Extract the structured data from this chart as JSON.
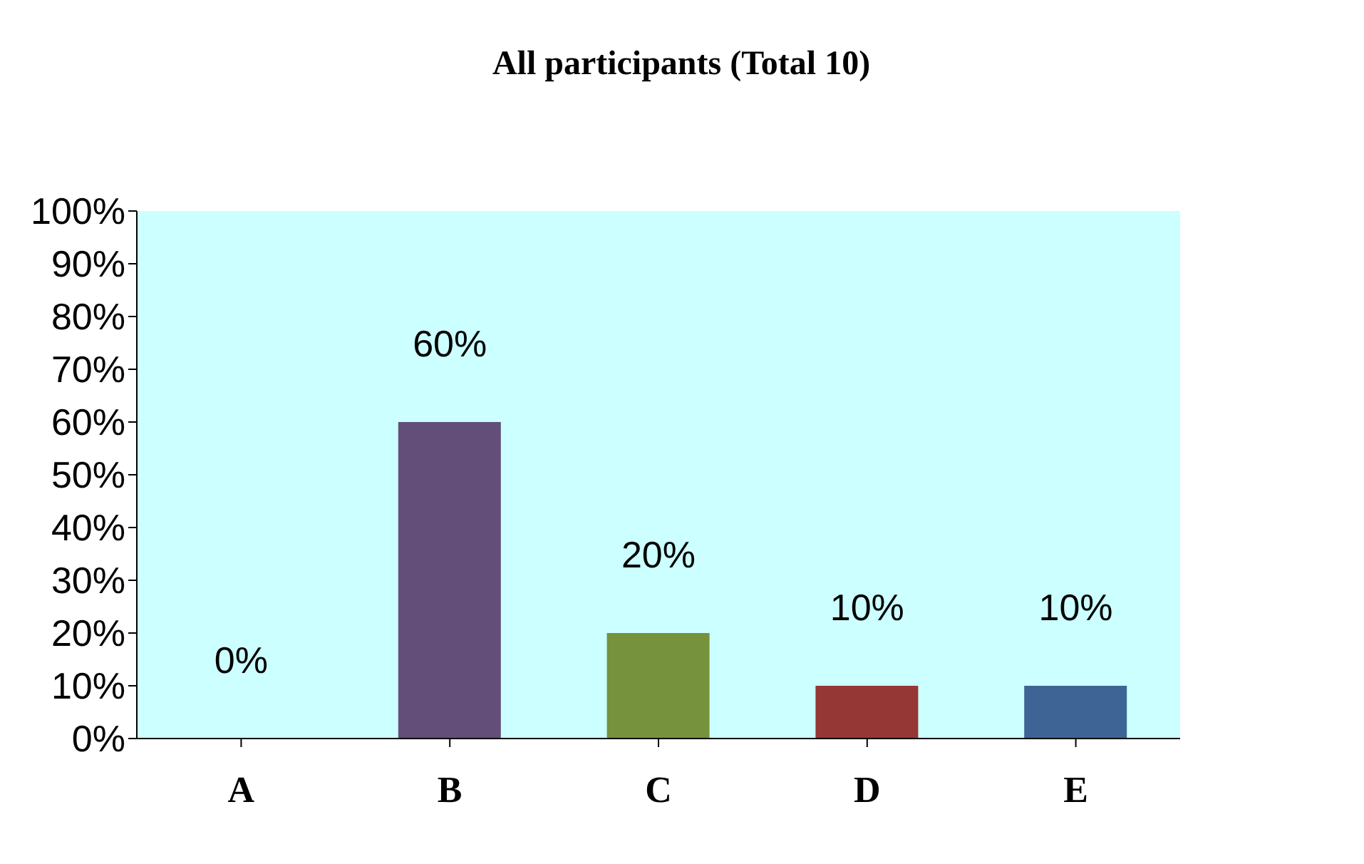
{
  "chart_data": {
    "type": "bar",
    "title": "All participants (Total 10)",
    "categories": [
      "A",
      "B",
      "C",
      "D",
      "E"
    ],
    "values": [
      0,
      60,
      20,
      10,
      10
    ],
    "colors": [
      "#4f81bd",
      "#634e7a",
      "#77923c",
      "#953735",
      "#3e6496"
    ],
    "value_labels": [
      "0%",
      "60%",
      "20%",
      "10%",
      "10%"
    ],
    "ylim": [
      0,
      100
    ],
    "yticks": [
      {
        "value": 0,
        "label": "0%"
      },
      {
        "value": 10,
        "label": "10%"
      },
      {
        "value": 20,
        "label": "20%"
      },
      {
        "value": 30,
        "label": "30%"
      },
      {
        "value": 40,
        "label": "40%"
      },
      {
        "value": 50,
        "label": "50%"
      },
      {
        "value": 60,
        "label": "60%"
      },
      {
        "value": 70,
        "label": "70%"
      },
      {
        "value": 80,
        "label": "80%"
      },
      {
        "value": 90,
        "label": "90%"
      },
      {
        "value": 100,
        "label": "100%"
      }
    ]
  }
}
